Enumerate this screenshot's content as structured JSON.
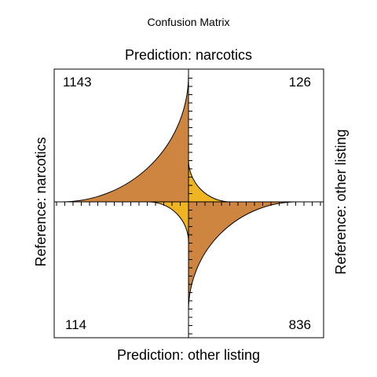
{
  "chart_data": {
    "type": "fourfold",
    "title": "Confusion Matrix",
    "top_label": "Prediction: narcotics",
    "bottom_label": "Prediction: other listing",
    "left_label": "Reference: narcotics",
    "right_label": "Reference: other listing",
    "cells": [
      {
        "name": "narcotics-narcotics",
        "value": 1143,
        "label": "1143",
        "quadrant": "top-left",
        "correct": true
      },
      {
        "name": "narcotics-other",
        "value": 126,
        "label": "126",
        "quadrant": "top-right",
        "correct": false
      },
      {
        "name": "other-narcotics",
        "value": 114,
        "label": "114",
        "quadrant": "bottom-left",
        "correct": false
      },
      {
        "name": "other-other",
        "value": 836,
        "label": "836",
        "quadrant": "bottom-right",
        "correct": true
      }
    ],
    "colors": {
      "correct": "#CD853F",
      "incorrect": "#EEB422",
      "stroke": "#000000"
    }
  }
}
